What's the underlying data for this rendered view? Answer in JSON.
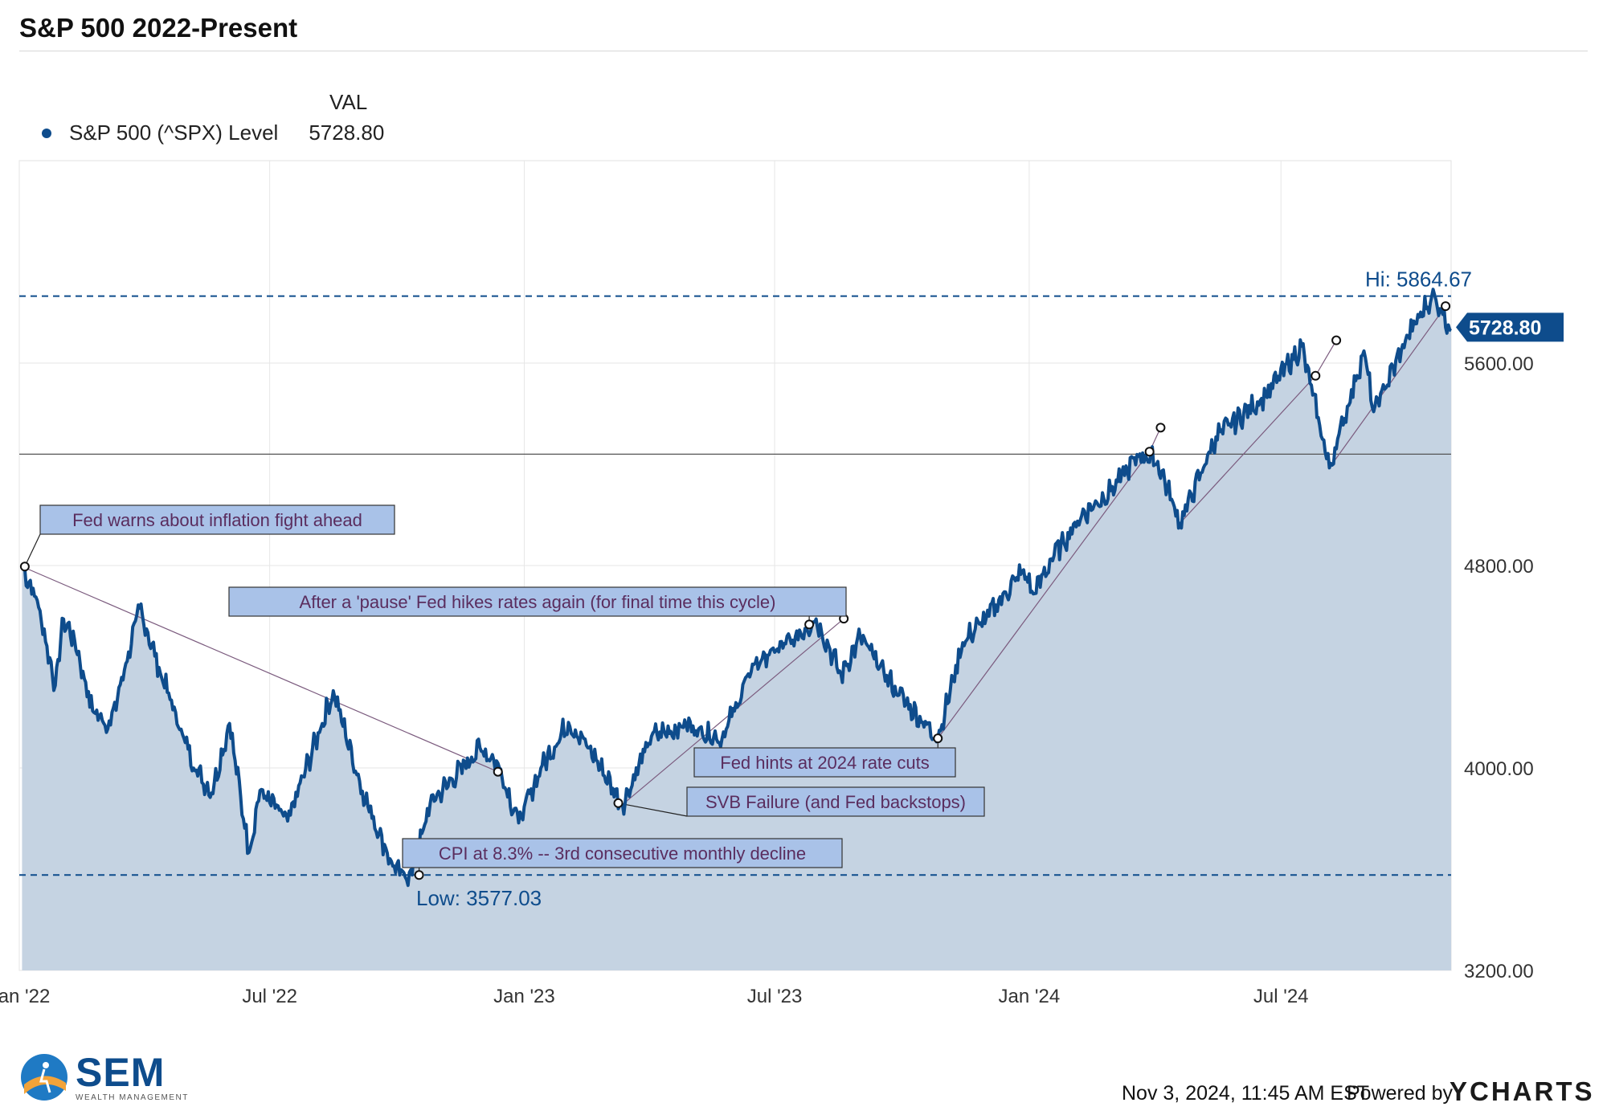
{
  "title": "S&P 500 2022-Present",
  "legend": {
    "header": "VAL",
    "series_name": "S&P 500 (^SPX) Level",
    "value": "5728.80"
  },
  "colors": {
    "line": "#0e4c8c",
    "fill": "#c5d3e2",
    "annotation_fill": "#a9c2e8",
    "annotation_text": "#5a2d5e",
    "connector": "#7b5b7e",
    "grid": "#e6e6e6",
    "refline": "#555555"
  },
  "footer": {
    "date": "Nov 3, 2024, 11:45 AM EST",
    "powered_by": "Powered by",
    "ycharts": "YCHARTS"
  },
  "logo": {
    "name": "SEM",
    "subtitle": "WEALTH MANAGEMENT"
  },
  "chart_data": {
    "type": "line",
    "ylim": [
      3200,
      6400
    ],
    "yticks": [
      3200,
      4000,
      4800,
      5600
    ],
    "ytick_labels": [
      "3200.00",
      "4000.00",
      "4800.00",
      "5600.00"
    ],
    "x_start": "2022-01-01",
    "x_end": "2024-11-01",
    "xtick_labels": [
      "Jan '22",
      "Jul '22",
      "Jan '23",
      "Jul '23",
      "Jan '24",
      "Jul '24"
    ],
    "xtick_dates": [
      "2022-01-01",
      "2022-07-01",
      "2023-01-01",
      "2023-07-01",
      "2024-01-01",
      "2024-07-01"
    ],
    "grid": true,
    "series": [
      {
        "name": "S&P 500 (^SPX) Level",
        "points": [
          [
            "2022-01-03",
            4796
          ],
          [
            "2022-01-14",
            4662
          ],
          [
            "2022-01-27",
            4326
          ],
          [
            "2022-02-02",
            4589
          ],
          [
            "2022-02-10",
            4504
          ],
          [
            "2022-02-23",
            4225
          ],
          [
            "2022-03-08",
            4170
          ],
          [
            "2022-03-29",
            4631
          ],
          [
            "2022-04-12",
            4397
          ],
          [
            "2022-04-29",
            4132
          ],
          [
            "2022-05-09",
            3991
          ],
          [
            "2022-05-20",
            3901
          ],
          [
            "2022-06-02",
            4176
          ],
          [
            "2022-06-16",
            3666
          ],
          [
            "2022-06-24",
            3911
          ],
          [
            "2022-07-14",
            3790
          ],
          [
            "2022-08-16",
            4305
          ],
          [
            "2022-09-06",
            3908
          ],
          [
            "2022-09-30",
            3586
          ],
          [
            "2022-10-12",
            3577
          ],
          [
            "2022-10-25",
            3860
          ],
          [
            "2022-11-10",
            3956
          ],
          [
            "2022-11-30",
            4080
          ],
          [
            "2022-12-13",
            4019
          ],
          [
            "2022-12-28",
            3783
          ],
          [
            "2023-01-13",
            3999
          ],
          [
            "2023-02-02",
            4180
          ],
          [
            "2023-02-17",
            4079
          ],
          [
            "2023-03-13",
            3855
          ],
          [
            "2023-04-03",
            4125
          ],
          [
            "2023-04-28",
            4169
          ],
          [
            "2023-05-24",
            4116
          ],
          [
            "2023-06-16",
            4409
          ],
          [
            "2023-07-14",
            4505
          ],
          [
            "2023-07-31",
            4589
          ],
          [
            "2023-08-18",
            4370
          ],
          [
            "2023-09-01",
            4515
          ],
          [
            "2023-09-29",
            4288
          ],
          [
            "2023-10-27",
            4117
          ],
          [
            "2023-11-14",
            4495
          ],
          [
            "2023-12-01",
            4594
          ],
          [
            "2023-12-28",
            4783
          ],
          [
            "2024-01-04",
            4688
          ],
          [
            "2024-01-19",
            4840
          ],
          [
            "2024-02-08",
            4998
          ],
          [
            "2024-02-29",
            5096
          ],
          [
            "2024-03-21",
            5241
          ],
          [
            "2024-04-03",
            5211
          ],
          [
            "2024-04-19",
            4967
          ],
          [
            "2024-05-15",
            5308
          ],
          [
            "2024-06-20",
            5473
          ],
          [
            "2024-07-16",
            5667
          ],
          [
            "2024-08-05",
            5186
          ],
          [
            "2024-08-30",
            5648
          ],
          [
            "2024-09-06",
            5408
          ],
          [
            "2024-10-01",
            5708
          ],
          [
            "2024-10-18",
            5864
          ],
          [
            "2024-10-25",
            5808
          ],
          [
            "2024-11-01",
            5728
          ]
        ]
      }
    ],
    "reference_lines": [
      {
        "label": "Hi: 5864.67",
        "value": 5864.67,
        "style": "dashed"
      },
      {
        "label": "Low: 3577.03",
        "value": 3577.03,
        "style": "dashed"
      },
      {
        "label": "",
        "value": 5240,
        "style": "solid"
      }
    ],
    "last_value_label": "5728.80",
    "annotations": [
      {
        "text": "Fed warns about inflation fight ahead",
        "date": "2022-01-05",
        "value": 4796
      },
      {
        "text": "After a 'pause' Fed hikes rates again (for final time this cycle)",
        "date": "2023-07-26",
        "value": 4567
      },
      {
        "text": "CPI at 8.3% -- 3rd consecutive monthly decline",
        "date": "2022-10-17",
        "value": 3577
      },
      {
        "text": "Fed hints at 2024 rate cuts",
        "date": "2023-10-27",
        "value": 4117
      },
      {
        "text": "SVB Failure (and Fed backstops)",
        "date": "2023-03-10",
        "value": 3861
      }
    ]
  }
}
